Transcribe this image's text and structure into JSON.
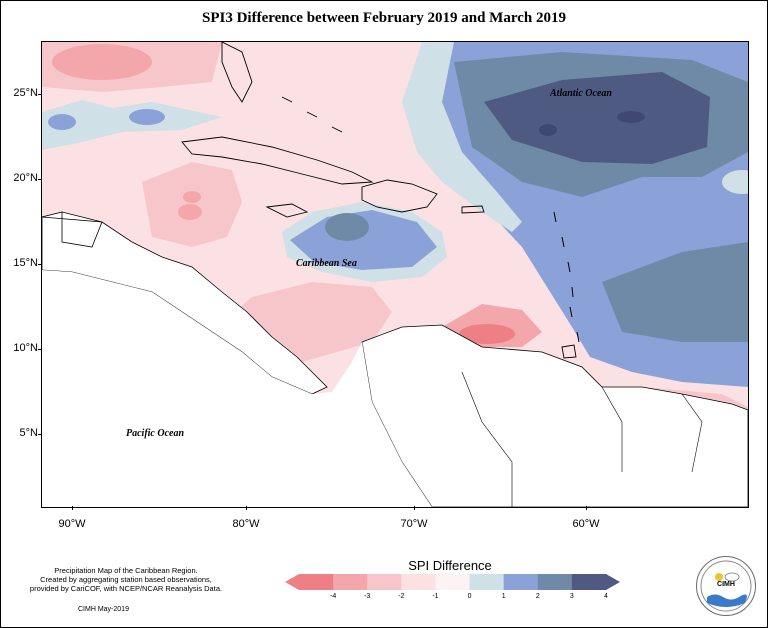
{
  "title": "SPI3 Difference between February 2019 and March 2019",
  "axes": {
    "y_ticks": [
      "25°N",
      "20°N",
      "15°N",
      "10°N",
      "5°N"
    ],
    "x_ticks": [
      "90°W",
      "80°W",
      "70°W",
      "60°W"
    ]
  },
  "map_labels": {
    "atlantic": "Atlantic Ocean",
    "caribbean": "Caribbean Sea",
    "pacific": "Pacific Ocean"
  },
  "legend": {
    "title": "SPI Difference",
    "tick_labels": [
      "-4",
      "-3",
      "-2",
      "-1",
      "0",
      "1",
      "2",
      "3",
      "4"
    ],
    "colors": [
      "#ee7f85",
      "#f3a7ab",
      "#f7c6cb",
      "#fbe1e4",
      "#fdf3f3",
      "#cfe0e6",
      "#8ba2d8",
      "#6e8aa6",
      "#4f5a82"
    ]
  },
  "footer": {
    "note_line1": "Precipitation Map of the Caribbean Region.",
    "note_line2": "Created by aggregating station based observations,",
    "note_line3": "provided by CariCOF, with NCEP/NCAR Reanalysis Data.",
    "credit": "CIMH May-2019",
    "logo_text": "CIMH"
  }
}
